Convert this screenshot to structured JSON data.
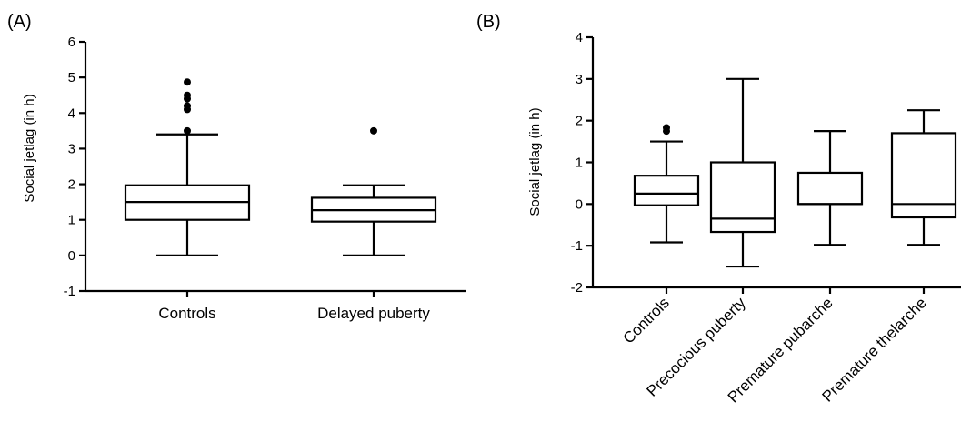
{
  "chart_data": [
    {
      "type": "box",
      "panel_label": "(A)",
      "ylabel": "Social jetlag (in h)",
      "ylim": [
        -1,
        6
      ],
      "yticks": [
        -1,
        0,
        1,
        2,
        3,
        4,
        5,
        6
      ],
      "categories": [
        "Controls",
        "Delayed puberty"
      ],
      "boxes": [
        {
          "category": "Controls",
          "min": 0,
          "q1": 1.0,
          "median": 1.5,
          "q3": 1.97,
          "max": 3.4,
          "outliers": [
            3.5,
            4.1,
            4.2,
            4.4,
            4.5,
            4.87
          ]
        },
        {
          "category": "Delayed puberty",
          "min": 0,
          "q1": 0.95,
          "median": 1.27,
          "q3": 1.62,
          "max": 1.97,
          "outliers": [
            3.5
          ]
        }
      ]
    },
    {
      "type": "box",
      "panel_label": "(B)",
      "ylabel": "Social jetlag (in h)",
      "ylim": [
        -2,
        4
      ],
      "yticks": [
        -2,
        -1,
        0,
        1,
        2,
        3,
        4
      ],
      "categories": [
        "Controls",
        "Precocious puberty",
        "Premature pubarche",
        "Premature thelarche"
      ],
      "boxes": [
        {
          "category": "Controls",
          "min": -0.92,
          "q1": -0.03,
          "median": 0.25,
          "q3": 0.68,
          "max": 1.5,
          "outliers": [
            1.75,
            1.83
          ]
        },
        {
          "category": "Precocious puberty",
          "min": -1.5,
          "q1": -0.67,
          "median": -0.35,
          "q3": 1.0,
          "max": 3.0,
          "outliers": []
        },
        {
          "category": "Premature pubarche",
          "min": -0.98,
          "q1": 0.0,
          "median": 0.0,
          "q3": 0.75,
          "max": 1.75,
          "outliers": []
        },
        {
          "category": "Premature thelarche",
          "min": -0.98,
          "q1": -0.32,
          "median": 0.0,
          "q3": 1.7,
          "max": 2.25,
          "outliers": []
        }
      ]
    }
  ]
}
